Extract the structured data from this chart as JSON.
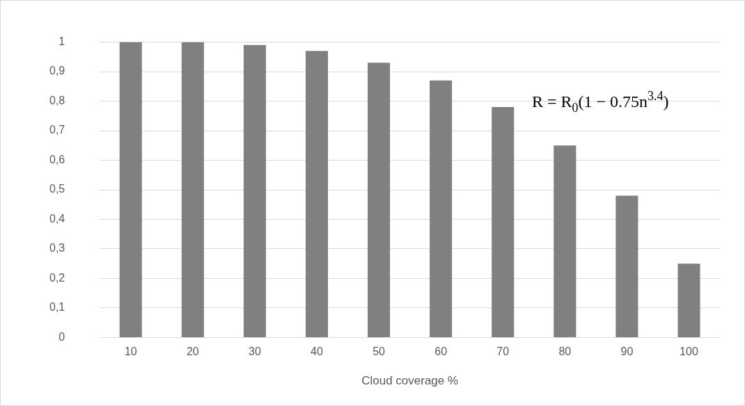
{
  "chart_data": {
    "type": "bar",
    "xlabel": "Cloud coverage %",
    "categories": [
      "10",
      "20",
      "30",
      "40",
      "50",
      "60",
      "70",
      "80",
      "90",
      "100"
    ],
    "values": [
      1.0,
      1.0,
      0.99,
      0.97,
      0.93,
      0.87,
      0.78,
      0.65,
      0.48,
      0.25
    ],
    "color": "#808080",
    "ylim": [
      0,
      1
    ],
    "yticks": [
      0,
      {
        "value": 0.1,
        "label": "0,1"
      },
      {
        "value": 0.2,
        "label": "0,2"
      },
      {
        "value": 0.3,
        "label": "0,3"
      },
      {
        "value": 0.4,
        "label": "0,4"
      },
      {
        "value": 0.5,
        "label": "0,5"
      },
      {
        "value": 0.6,
        "label": "0,6"
      },
      {
        "value": 0.7,
        "label": "0,7"
      },
      {
        "value": 0.8,
        "label": "0,8"
      },
      {
        "value": 0.9,
        "label": "0,9"
      },
      1
    ],
    "grid": "y",
    "legend": false,
    "annotations": [
      "R = R$_{0}$(1 − 0.75n$^{3.4}$)"
    ]
  }
}
